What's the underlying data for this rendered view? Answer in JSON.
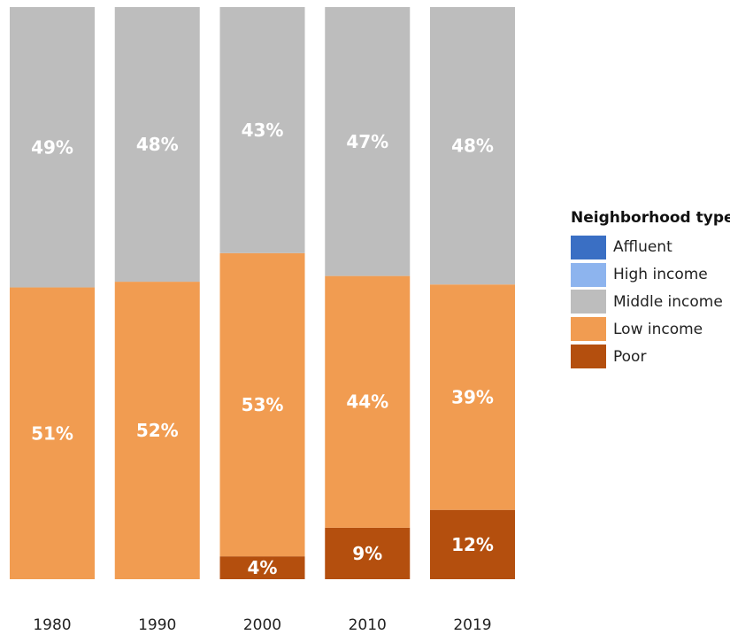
{
  "chart_data": {
    "type": "bar",
    "stacked": true,
    "categories": [
      "1980",
      "1990",
      "2000",
      "2010",
      "2019"
    ],
    "series": [
      {
        "name": "Affluent",
        "color": "#3a6fc4",
        "values": [
          0,
          0,
          0,
          0,
          0
        ],
        "labels": [
          "",
          "",
          "",
          "",
          ""
        ]
      },
      {
        "name": "High income",
        "color": "#8db4ee",
        "values": [
          0,
          0,
          0,
          0,
          0
        ],
        "labels": [
          "",
          "",
          "",
          "",
          ""
        ]
      },
      {
        "name": "Middle income",
        "color": "#bdbdbd",
        "values": [
          49,
          48,
          43,
          47,
          48
        ],
        "labels": [
          "49%",
          "48%",
          "43%",
          "47%",
          "48%"
        ]
      },
      {
        "name": "Low income",
        "color": "#f19c51",
        "values": [
          51,
          52,
          53,
          44,
          39
        ],
        "labels": [
          "51%",
          "52%",
          "53%",
          "44%",
          "39%"
        ]
      },
      {
        "name": "Poor",
        "color": "#b44f0e",
        "values": [
          0,
          0,
          4,
          9,
          12
        ],
        "labels": [
          "",
          "",
          "4%",
          "9%",
          "12%"
        ]
      }
    ],
    "ylim": [
      0,
      100
    ],
    "legend": {
      "title": "Neighborhood type",
      "position": "right"
    },
    "grid": false
  }
}
